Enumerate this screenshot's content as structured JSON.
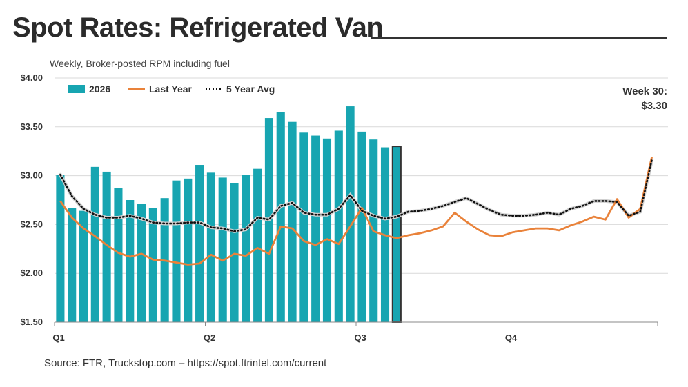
{
  "title": "Spot Rates: Refrigerated Van",
  "subtitle": "Weekly, Broker-posted RPM including fuel",
  "annotation": {
    "line1": "Week 30:",
    "line2": "$3.30"
  },
  "source": "Source: FTR, Truckstop.com – https://spot.ftrintel.com/current",
  "colors": {
    "bars": "#17A5B1",
    "last_year": "#E9823A",
    "avg": "#111111",
    "grid": "#d9d9d9",
    "highlight_outline": "#333333"
  },
  "chart_data": {
    "type": "bar",
    "ylim": [
      1.5,
      4.0
    ],
    "yticks": [
      "$1.50",
      "$2.00",
      "$2.50",
      "$3.00",
      "$3.50",
      "$4.00"
    ],
    "ytick_values": [
      1.5,
      2.0,
      2.5,
      3.0,
      3.5,
      4.0
    ],
    "weeks_total": 52,
    "quarters": [
      {
        "label": "Q1",
        "week": 1
      },
      {
        "label": "Q2",
        "week": 14
      },
      {
        "label": "Q3",
        "week": 27
      },
      {
        "label": "Q4",
        "week": 40
      }
    ],
    "legend_position": "top-left",
    "series": [
      {
        "name": "2026",
        "type": "bar",
        "values": [
          3.01,
          2.67,
          2.64,
          3.09,
          3.04,
          2.87,
          2.75,
          2.71,
          2.67,
          2.77,
          2.95,
          2.97,
          3.11,
          3.03,
          2.98,
          2.92,
          3.01,
          3.07,
          3.59,
          3.65,
          3.55,
          3.44,
          3.41,
          3.38,
          3.46,
          3.71,
          3.45,
          3.37,
          3.29,
          3.3
        ]
      },
      {
        "name": "Last Year",
        "type": "line",
        "values": [
          2.74,
          2.57,
          2.46,
          2.38,
          2.29,
          2.21,
          2.17,
          2.2,
          2.14,
          2.13,
          2.11,
          2.09,
          2.1,
          2.19,
          2.13,
          2.2,
          2.18,
          2.26,
          2.2,
          2.48,
          2.46,
          2.33,
          2.29,
          2.35,
          2.3,
          2.48,
          2.67,
          2.43,
          2.39,
          2.36,
          2.39,
          2.41,
          2.44,
          2.48,
          2.62,
          2.53,
          2.45,
          2.39,
          2.38,
          2.42,
          2.44,
          2.46,
          2.46,
          2.44,
          2.49,
          2.53,
          2.58,
          2.55,
          2.76,
          2.57,
          2.66,
          3.19
        ]
      },
      {
        "name": "5 Year Avg",
        "type": "line",
        "values": [
          3.01,
          2.79,
          2.66,
          2.6,
          2.57,
          2.57,
          2.59,
          2.56,
          2.52,
          2.51,
          2.51,
          2.52,
          2.52,
          2.47,
          2.46,
          2.43,
          2.45,
          2.57,
          2.55,
          2.69,
          2.72,
          2.62,
          2.6,
          2.6,
          2.66,
          2.8,
          2.64,
          2.59,
          2.56,
          2.58,
          2.63,
          2.64,
          2.66,
          2.69,
          2.73,
          2.77,
          2.71,
          2.65,
          2.6,
          2.59,
          2.59,
          2.6,
          2.62,
          2.6,
          2.66,
          2.69,
          2.74,
          2.74,
          2.73,
          2.59,
          2.63,
          3.16
        ]
      }
    ]
  }
}
